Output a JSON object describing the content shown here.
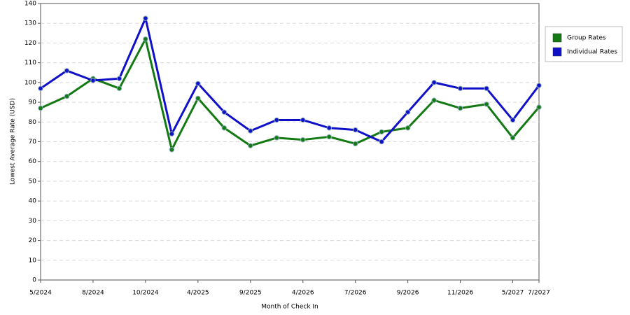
{
  "chart_data": {
    "type": "line",
    "x_label": "Month of Check In",
    "y_label": "Lowest Average Rate (USD)",
    "categories": [
      "5/2024",
      null,
      "8/2024",
      null,
      "10/2024",
      null,
      "4/2025",
      null,
      "9/2025",
      null,
      "4/2026",
      null,
      "7/2026",
      null,
      "9/2026",
      null,
      "11/2026",
      null,
      "5/2027",
      "7/2027"
    ],
    "series": [
      {
        "name": "Group Rates",
        "color": "#137a13",
        "values": [
          87,
          93,
          102,
          97,
          122,
          66,
          92,
          77,
          68,
          72,
          71,
          72.5,
          69,
          75,
          77,
          91,
          87,
          89,
          72,
          87.5
        ]
      },
      {
        "name": "Individual Rates",
        "color": "#1010c8",
        "values": [
          97,
          106,
          101,
          102,
          132.5,
          74,
          99.5,
          85,
          75.5,
          81,
          81,
          77,
          76,
          70,
          85,
          100,
          97,
          97,
          81,
          98.5
        ]
      }
    ],
    "ylim": [
      0,
      140
    ],
    "yticks": [
      0,
      10,
      20,
      30,
      40,
      50,
      60,
      70,
      80,
      90,
      100,
      110,
      120,
      130,
      140
    ],
    "grid": true,
    "legend": "right"
  }
}
